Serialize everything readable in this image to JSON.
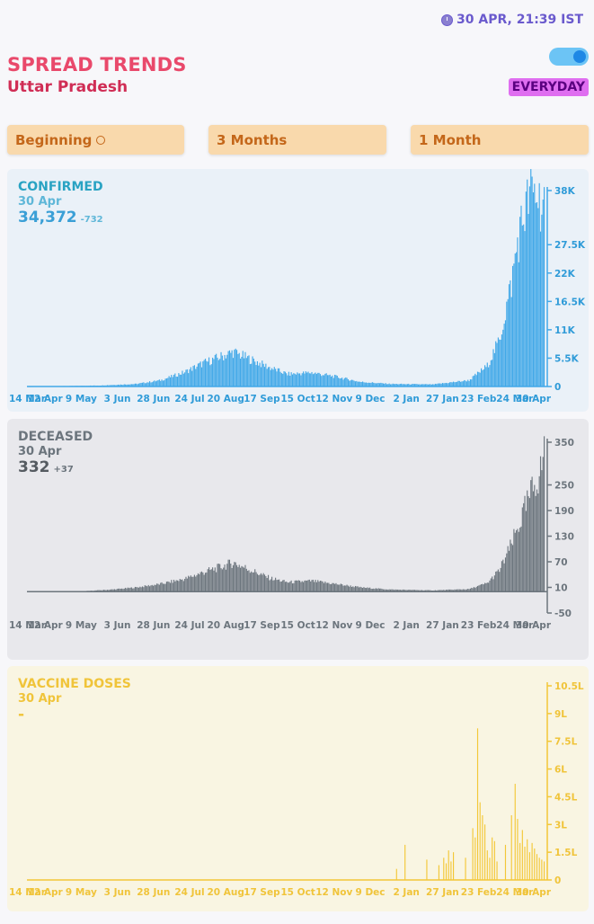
{
  "header": {
    "timestamp": "30 APR, 21:39 IST",
    "title": "SPREAD TRENDS",
    "region": "Uttar Pradesh",
    "mode_badge": "EVERYDAY"
  },
  "ranges": [
    "Beginning",
    "3 Months",
    "1 Month"
  ],
  "colors": {
    "confirmed": "#41a8e8",
    "deceased": "#6c757d",
    "vaccine": "#f3c737",
    "title": "#e9496b"
  },
  "x_tick_labels": [
    "14 Mar",
    "12 Apr",
    "9 May",
    "3 Jun",
    "28 Jun",
    "24 Jul",
    "20 Aug",
    "17 Sep",
    "15 Oct",
    "12 Nov",
    "9 Dec",
    "2 Jan",
    "27 Jan",
    "23 Feb",
    "24 Mar",
    "30 Apr"
  ],
  "panels": {
    "confirmed": {
      "title": "CONFIRMED",
      "date": "30 Apr",
      "value": "34,372",
      "delta": "-732"
    },
    "deceased": {
      "title": "DECEASED",
      "date": "30 Apr",
      "value": "332",
      "delta": "+37"
    },
    "vaccine": {
      "title": "VACCINE DOSES",
      "date": "30 Apr",
      "value": "-",
      "delta": ""
    }
  },
  "chart_data": [
    {
      "type": "bar",
      "name": "confirmed",
      "x_range": [
        "14 Mar 2020",
        "30 Apr 2021"
      ],
      "y_ticks": [
        "0",
        "5.5K",
        "11K",
        "16.5K",
        "22K",
        "27.5K",
        "38K"
      ],
      "ylim": [
        0,
        38000
      ],
      "x_ticks": [
        "14 Mar",
        "12 Apr",
        "9 May",
        "3 Jun",
        "28 Jun",
        "24 Jul",
        "20 Aug",
        "17 Sep",
        "15 Oct",
        "12 Nov",
        "9 Dec",
        "2 Jan",
        "27 Jan",
        "23 Feb",
        "24 Mar",
        "30 Apr"
      ],
      "keypoints": [
        [
          0,
          0
        ],
        [
          30,
          80
        ],
        [
          60,
          200
        ],
        [
          90,
          500
        ],
        [
          110,
          1200
        ],
        [
          130,
          2800
        ],
        [
          145,
          4500
        ],
        [
          160,
          5800
        ],
        [
          170,
          6700
        ],
        [
          185,
          5200
        ],
        [
          200,
          3700
        ],
        [
          215,
          2400
        ],
        [
          235,
          2700
        ],
        [
          255,
          1900
        ],
        [
          275,
          900
        ],
        [
          300,
          500
        ],
        [
          335,
          400
        ],
        [
          365,
          1200
        ],
        [
          380,
          4000
        ],
        [
          390,
          9000
        ],
        [
          400,
          20000
        ],
        [
          405,
          28000
        ],
        [
          410,
          33000
        ],
        [
          415,
          37000
        ],
        [
          420,
          37500
        ],
        [
          424,
          36000
        ],
        [
          427,
          34372
        ]
      ]
    },
    {
      "type": "bar",
      "name": "deceased",
      "x_range": [
        "14 Mar 2020",
        "30 Apr 2021"
      ],
      "y_ticks": [
        "-50",
        "10",
        "70",
        "130",
        "190",
        "250",
        "350"
      ],
      "ylim": [
        -50,
        350
      ],
      "x_ticks": [
        "14 Mar",
        "12 Apr",
        "9 May",
        "3 Jun",
        "28 Jun",
        "24 Jul",
        "20 Aug",
        "17 Sep",
        "15 Oct",
        "12 Nov",
        "9 Dec",
        "2 Jan",
        "27 Jan",
        "23 Feb",
        "24 Mar",
        "30 Apr"
      ],
      "keypoints": [
        [
          0,
          0
        ],
        [
          45,
          1
        ],
        [
          70,
          5
        ],
        [
          90,
          10
        ],
        [
          110,
          18
        ],
        [
          130,
          30
        ],
        [
          145,
          45
        ],
        [
          160,
          58
        ],
        [
          170,
          68
        ],
        [
          185,
          50
        ],
        [
          200,
          32
        ],
        [
          215,
          22
        ],
        [
          235,
          25
        ],
        [
          255,
          18
        ],
        [
          275,
          10
        ],
        [
          300,
          5
        ],
        [
          335,
          3
        ],
        [
          365,
          6
        ],
        [
          380,
          20
        ],
        [
          390,
          50
        ],
        [
          400,
          110
        ],
        [
          408,
          170
        ],
        [
          415,
          220
        ],
        [
          420,
          260
        ],
        [
          424,
          280
        ],
        [
          427,
          332
        ]
      ]
    },
    {
      "type": "bar",
      "name": "vaccine doses",
      "x_range": [
        "14 Mar 2020",
        "30 Apr 2021"
      ],
      "y_ticks": [
        "0",
        "1.5L",
        "3L",
        "4.5L",
        "6L",
        "7.5L",
        "9L",
        "10.5L"
      ],
      "ylim": [
        0,
        1050000
      ],
      "x_ticks": [
        "14 Mar",
        "12 Apr",
        "9 May",
        "3 Jun",
        "28 Jun",
        "24 Jul",
        "20 Aug",
        "17 Sep",
        "15 Oct",
        "12 Nov",
        "9 Dec",
        "2 Jan",
        "27 Jan",
        "23 Feb",
        "24 Mar",
        "30 Apr"
      ],
      "spikes": [
        [
          305,
          60000
        ],
        [
          312,
          190000
        ],
        [
          330,
          110000
        ],
        [
          340,
          80000
        ],
        [
          344,
          120000
        ],
        [
          346,
          90000
        ],
        [
          348,
          160000
        ],
        [
          350,
          100000
        ],
        [
          352,
          150000
        ],
        [
          362,
          120000
        ],
        [
          368,
          280000
        ],
        [
          370,
          230000
        ],
        [
          372,
          820000
        ],
        [
          374,
          420000
        ],
        [
          376,
          350000
        ],
        [
          378,
          300000
        ],
        [
          380,
          160000
        ],
        [
          382,
          120000
        ],
        [
          384,
          230000
        ],
        [
          386,
          210000
        ],
        [
          388,
          100000
        ],
        [
          395,
          190000
        ],
        [
          400,
          350000
        ],
        [
          403,
          520000
        ],
        [
          405,
          330000
        ],
        [
          407,
          200000
        ],
        [
          409,
          270000
        ],
        [
          411,
          180000
        ],
        [
          413,
          220000
        ],
        [
          415,
          150000
        ],
        [
          417,
          200000
        ],
        [
          419,
          170000
        ],
        [
          421,
          140000
        ],
        [
          423,
          120000
        ],
        [
          425,
          110000
        ],
        [
          427,
          100000
        ]
      ]
    }
  ]
}
